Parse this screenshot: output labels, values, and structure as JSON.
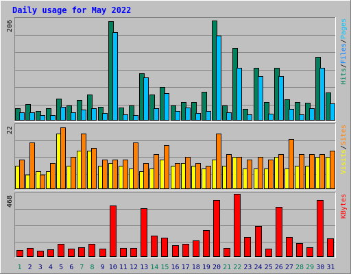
{
  "colors": {
    "background": "#C0C0C0",
    "title_text": "#0000FF",
    "hits": "#00805C",
    "files": "#0080FF",
    "pages": "#00C0FF",
    "visits": "#FFFF00",
    "sites": "#FF8000",
    "kbytes": "#FF0000",
    "weekend_label": "#00805C",
    "weekday_label": "#000080"
  },
  "chart_data": {
    "type": "bar",
    "title": "Daily usage for May 2022",
    "categories": [
      "1",
      "2",
      "3",
      "4",
      "5",
      "6",
      "7",
      "8",
      "9",
      "10",
      "11",
      "12",
      "13",
      "14",
      "15",
      "16",
      "17",
      "18",
      "19",
      "20",
      "21",
      "22",
      "23",
      "24",
      "25",
      "26",
      "27",
      "28",
      "29",
      "30",
      "31"
    ],
    "weekend_days": [
      "1",
      "7",
      "8",
      "14",
      "15",
      "21",
      "22",
      "28",
      "29"
    ],
    "panels": [
      {
        "name": "hits_pages",
        "max_label": "206",
        "ylim": [
          0,
          206
        ],
        "grid": true,
        "legend": [
          "Pages",
          "/",
          "Files",
          "/",
          "Hits"
        ],
        "series": [
          {
            "name": "Hits",
            "values": [
              25,
              33,
              20,
              25,
              44,
              30,
              42,
              52,
              28,
              200,
              26,
              30,
              96,
              52,
              68,
              31,
              38,
              38,
              58,
              202,
              31,
              146,
              23,
              106,
              38,
              106,
              43,
              38,
              36,
              129,
              56
            ]
          },
          {
            "name": "Pages",
            "values": [
              16,
              17,
              11,
              11,
              28,
              17,
              22,
              25,
              15,
              178,
              13,
              11,
              87,
              25,
              55,
              20,
              26,
              15,
              20,
              171,
              16,
              107,
              12,
              90,
              14,
              90,
              24,
              13,
              25,
              106,
              34
            ]
          }
        ]
      },
      {
        "name": "visits_sites",
        "max_label": "22",
        "ylim": [
          0,
          22
        ],
        "grid": true,
        "legend": [
          "Sites",
          "/",
          "Visits"
        ],
        "series": [
          {
            "name": "Visits",
            "values": [
              8,
              5,
              6,
              6,
              19,
              8,
              13,
              13,
              8,
              9,
              8,
              7,
              6,
              7,
              10,
              8,
              9,
              8,
              7,
              10,
              8,
              11,
              7,
              7,
              7,
              11,
              7,
              8,
              8,
              11,
              11
            ]
          },
          {
            "name": "Sites",
            "values": [
              10,
              16,
              5,
              9,
              21,
              11,
              19,
              14,
              10,
              10,
              10,
              16,
              9,
              12,
              15,
              9,
              11,
              9,
              8,
              19,
              12,
              11,
              10,
              11,
              10,
              12,
              17,
              12,
              12,
              12,
              13
            ]
          }
        ]
      },
      {
        "name": "kbytes",
        "max_label": "468",
        "ylim": [
          0,
          468
        ],
        "grid": true,
        "legend": [
          "KBytes"
        ],
        "series": [
          {
            "name": "KBytes",
            "values": [
              52,
              68,
              48,
              55,
              95,
              60,
              72,
              95,
              62,
              380,
              65,
              65,
              360,
              160,
              140,
              85,
              95,
              120,
              200,
              420,
              65,
              468,
              150,
              230,
              60,
              370,
              148,
              100,
              70,
              420,
              138
            ]
          }
        ]
      }
    ]
  }
}
